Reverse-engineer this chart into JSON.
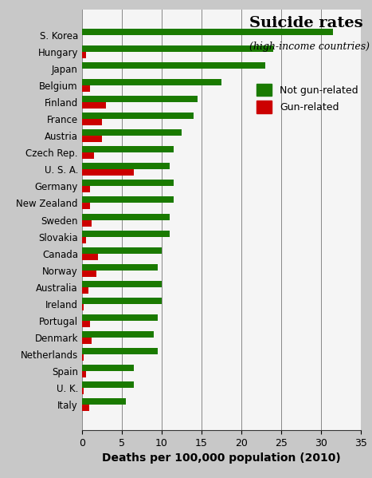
{
  "countries": [
    "Italy",
    "U. K.",
    "Spain",
    "Netherlands",
    "Denmark",
    "Portugal",
    "Ireland",
    "Australia",
    "Norway",
    "Canada",
    "Slovakia",
    "Sweden",
    "New Zealand",
    "Germany",
    "U. S. A.",
    "Czech Rep.",
    "Austria",
    "France",
    "Finland",
    "Belgium",
    "Japan",
    "Hungary",
    "S. Korea"
  ],
  "not_gun": [
    5.5,
    6.5,
    6.5,
    9.5,
    9.0,
    9.5,
    10.0,
    10.0,
    9.5,
    10.0,
    11.0,
    11.0,
    11.5,
    11.5,
    11.0,
    11.5,
    12.5,
    14.0,
    14.5,
    17.5,
    23.0,
    24.0,
    31.5
  ],
  "gun": [
    0.9,
    0.2,
    0.5,
    0.2,
    1.2,
    1.0,
    0.2,
    0.8,
    1.8,
    2.0,
    0.5,
    1.2,
    1.0,
    1.0,
    6.5,
    1.5,
    2.5,
    2.5,
    3.0,
    1.0,
    0.05,
    0.5,
    0.05
  ],
  "not_gun_color": "#1a7a00",
  "gun_color": "#cc0000",
  "background_color": "#c8c8c8",
  "plot_bg_color": "#f5f5f5",
  "title": "Suicide rates",
  "subtitle": "(high-income countries)",
  "xlabel": "Deaths per 100,000 population (2010)",
  "xlim": [
    0,
    35
  ],
  "xticks": [
    0,
    5,
    10,
    15,
    20,
    25,
    30,
    35
  ],
  "bar_height": 0.38,
  "bar_gap": 0.38
}
